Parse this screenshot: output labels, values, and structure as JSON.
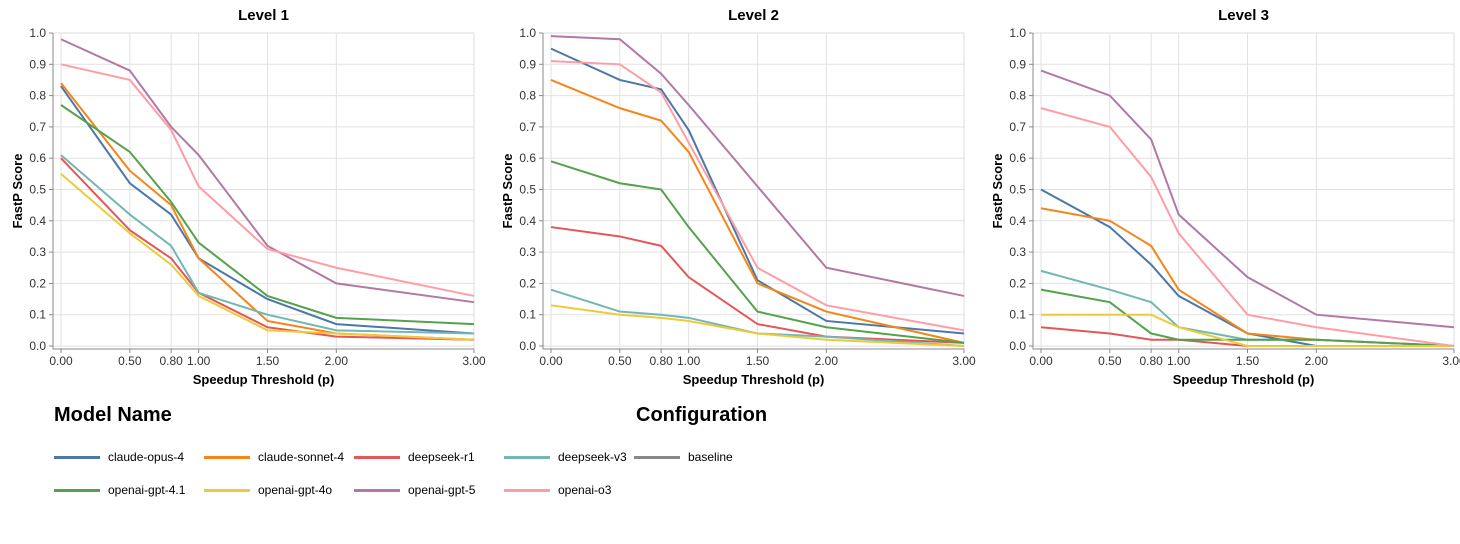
{
  "chart_data": [
    {
      "type": "line",
      "title": "Level 1",
      "xlabel": "Speedup Threshold (p)",
      "ylabel": "FastP Score",
      "x": [
        0,
        0.5,
        0.8,
        1.0,
        1.5,
        2.0,
        3.0
      ],
      "xticks": [
        "0.00",
        "0.50",
        "0.80",
        "1.00",
        "1.50",
        "2.00",
        "3.00"
      ],
      "yticks": [
        "0.0",
        "0.1",
        "0.2",
        "0.3",
        "0.4",
        "0.5",
        "0.6",
        "0.7",
        "0.8",
        "0.9",
        "1.0"
      ],
      "xlim": [
        0,
        3
      ],
      "ylim": [
        0,
        1
      ],
      "grid": true,
      "series": [
        {
          "name": "claude-opus-4",
          "values": [
            0.83,
            0.52,
            0.42,
            0.28,
            0.15,
            0.07,
            0.04
          ]
        },
        {
          "name": "claude-sonnet-4",
          "values": [
            0.84,
            0.56,
            0.45,
            0.28,
            0.08,
            0.04,
            0.02
          ]
        },
        {
          "name": "deepseek-r1",
          "values": [
            0.6,
            0.37,
            0.28,
            0.17,
            0.06,
            0.03,
            0.02
          ]
        },
        {
          "name": "deepseek-v3",
          "values": [
            0.61,
            0.42,
            0.32,
            0.17,
            0.1,
            0.05,
            0.04
          ]
        },
        {
          "name": "openai-gpt-4.1",
          "values": [
            0.77,
            0.62,
            0.46,
            0.33,
            0.16,
            0.09,
            0.07
          ]
        },
        {
          "name": "openai-gpt-4o",
          "values": [
            0.55,
            0.36,
            0.26,
            0.16,
            0.05,
            0.04,
            0.02
          ]
        },
        {
          "name": "openai-gpt-5",
          "values": [
            0.98,
            0.88,
            0.7,
            0.61,
            0.32,
            0.2,
            0.14
          ]
        },
        {
          "name": "openai-o3",
          "values": [
            0.9,
            0.85,
            0.69,
            0.51,
            0.31,
            0.25,
            0.16
          ]
        }
      ]
    },
    {
      "type": "line",
      "title": "Level 2",
      "xlabel": "Speedup Threshold (p)",
      "ylabel": "FastP Score",
      "x": [
        0,
        0.5,
        0.8,
        1.0,
        1.5,
        2.0,
        3.0
      ],
      "xticks": [
        "0.00",
        "0.50",
        "0.80",
        "1.00",
        "1.50",
        "2.00",
        "3.00"
      ],
      "yticks": [
        "0.0",
        "0.1",
        "0.2",
        "0.3",
        "0.4",
        "0.5",
        "0.6",
        "0.7",
        "0.8",
        "0.9",
        "1.0"
      ],
      "xlim": [
        0,
        3
      ],
      "ylim": [
        0,
        1
      ],
      "grid": true,
      "series": [
        {
          "name": "claude-opus-4",
          "values": [
            0.95,
            0.85,
            0.82,
            0.69,
            0.21,
            0.08,
            0.04
          ]
        },
        {
          "name": "claude-sonnet-4",
          "values": [
            0.85,
            0.76,
            0.72,
            0.62,
            0.2,
            0.11,
            0.01
          ]
        },
        {
          "name": "deepseek-r1",
          "values": [
            0.38,
            0.35,
            0.32,
            0.22,
            0.07,
            0.03,
            0.01
          ]
        },
        {
          "name": "deepseek-v3",
          "values": [
            0.18,
            0.11,
            0.1,
            0.09,
            0.04,
            0.03,
            0.0
          ]
        },
        {
          "name": "openai-gpt-4.1",
          "values": [
            0.59,
            0.52,
            0.5,
            0.38,
            0.11,
            0.06,
            0.01
          ]
        },
        {
          "name": "openai-gpt-4o",
          "values": [
            0.13,
            0.1,
            0.09,
            0.08,
            0.04,
            0.02,
            0.0
          ]
        },
        {
          "name": "openai-gpt-5",
          "values": [
            0.99,
            0.98,
            0.87,
            0.77,
            0.51,
            0.25,
            0.16
          ]
        },
        {
          "name": "openai-o3",
          "values": [
            0.91,
            0.9,
            0.81,
            0.65,
            0.25,
            0.13,
            0.05
          ]
        }
      ]
    },
    {
      "type": "line",
      "title": "Level 3",
      "xlabel": "Speedup Threshold (p)",
      "ylabel": "FastP Score",
      "x": [
        0,
        0.5,
        0.8,
        1.0,
        1.5,
        2.0,
        3.0
      ],
      "xticks": [
        "0.00",
        "0.50",
        "0.80",
        "1.00",
        "1.50",
        "2.00",
        "3.00"
      ],
      "yticks": [
        "0.0",
        "0.1",
        "0.2",
        "0.3",
        "0.4",
        "0.5",
        "0.6",
        "0.7",
        "0.8",
        "0.9",
        "1.0"
      ],
      "xlim": [
        0,
        3
      ],
      "ylim": [
        0,
        1
      ],
      "grid": true,
      "series": [
        {
          "name": "claude-opus-4",
          "values": [
            0.5,
            0.38,
            0.26,
            0.16,
            0.04,
            0.0,
            0.0
          ]
        },
        {
          "name": "claude-sonnet-4",
          "values": [
            0.44,
            0.4,
            0.32,
            0.18,
            0.04,
            0.02,
            0.0
          ]
        },
        {
          "name": "deepseek-r1",
          "values": [
            0.06,
            0.04,
            0.02,
            0.02,
            0.0,
            0.0,
            0.0
          ]
        },
        {
          "name": "deepseek-v3",
          "values": [
            0.24,
            0.18,
            0.14,
            0.06,
            0.02,
            0.02,
            0.0
          ]
        },
        {
          "name": "openai-gpt-4.1",
          "values": [
            0.18,
            0.14,
            0.04,
            0.02,
            0.02,
            0.02,
            0.0
          ]
        },
        {
          "name": "openai-gpt-4o",
          "values": [
            0.1,
            0.1,
            0.1,
            0.06,
            0.0,
            0.0,
            0.0
          ]
        },
        {
          "name": "openai-gpt-5",
          "values": [
            0.88,
            0.8,
            0.66,
            0.42,
            0.22,
            0.1,
            0.06
          ]
        },
        {
          "name": "openai-o3",
          "values": [
            0.76,
            0.7,
            0.54,
            0.36,
            0.1,
            0.06,
            0.0
          ]
        }
      ]
    }
  ],
  "legend": {
    "model_title": "Model Name",
    "config_title": "Configuration",
    "placement": "bottom",
    "items": [
      {
        "label": "claude-opus-4",
        "color": "#4c78a8"
      },
      {
        "label": "claude-sonnet-4",
        "color": "#f58518"
      },
      {
        "label": "deepseek-r1",
        "color": "#e45756"
      },
      {
        "label": "deepseek-v3",
        "color": "#72b7b2"
      },
      {
        "label": "baseline",
        "color": "#888888"
      },
      {
        "label": "openai-gpt-4.1",
        "color": "#54a24b"
      },
      {
        "label": "openai-gpt-4o",
        "color": "#eeca3b"
      },
      {
        "label": "openai-gpt-5",
        "color": "#b279a2"
      },
      {
        "label": "openai-o3",
        "color": "#ff9da6"
      }
    ]
  }
}
